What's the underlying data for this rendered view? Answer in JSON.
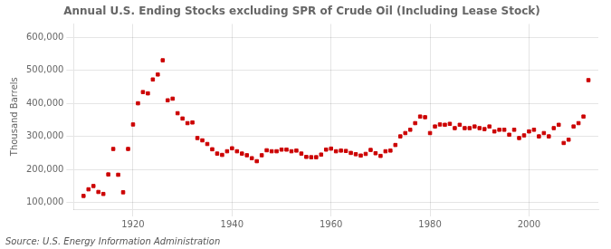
{
  "chart_data": {
    "type": "scatter",
    "title": "Annual U.S. Ending Stocks excluding SPR of Crude Oil (Including Lease Stock)",
    "y_label": "Thousand Barrels",
    "annotations": [
      "Source: U.S. Energy Information Administration"
    ],
    "color": "#cc0000",
    "marker": "square",
    "grid": true,
    "xlim": [
      1908,
      2014
    ],
    "ylim": [
      80000,
      640000
    ],
    "xticks": [
      1920,
      1940,
      1960,
      1980,
      2000
    ],
    "yticks": [
      {
        "value": 100000,
        "label": "100,000"
      },
      {
        "value": 200000,
        "label": "200,000"
      },
      {
        "value": 300000,
        "label": "300,000"
      },
      {
        "value": 400000,
        "label": "400,000"
      },
      {
        "value": 500000,
        "label": "500,000"
      },
      {
        "value": 600000,
        "label": "600,000"
      }
    ],
    "x": [
      1910,
      1911,
      1912,
      1913,
      1914,
      1915,
      1916,
      1917,
      1918,
      1919,
      1920,
      1921,
      1922,
      1923,
      1924,
      1925,
      1926,
      1927,
      1928,
      1929,
      1930,
      1931,
      1932,
      1933,
      1934,
      1935,
      1936,
      1937,
      1938,
      1939,
      1940,
      1941,
      1942,
      1943,
      1944,
      1945,
      1946,
      1947,
      1948,
      1949,
      1950,
      1951,
      1952,
      1953,
      1954,
      1955,
      1956,
      1957,
      1958,
      1959,
      1960,
      1961,
      1962,
      1963,
      1964,
      1965,
      1966,
      1967,
      1968,
      1969,
      1970,
      1971,
      1972,
      1973,
      1974,
      1975,
      1976,
      1977,
      1978,
      1979,
      1980,
      1981,
      1982,
      1983,
      1984,
      1985,
      1986,
      1987,
      1988,
      1989,
      1990,
      1991,
      1992,
      1993,
      1994,
      1995,
      1996,
      1997,
      1998,
      1999,
      2000,
      2001,
      2002,
      2003,
      2004,
      2005,
      2006,
      2007,
      2008,
      2009,
      2010,
      2011,
      2012
    ],
    "values": [
      120000,
      140000,
      150000,
      132000,
      126000,
      185000,
      262000,
      184000,
      131000,
      262000,
      336000,
      400000,
      434000,
      430000,
      472000,
      487000,
      530000,
      409000,
      414000,
      370000,
      354000,
      340000,
      342000,
      295000,
      288000,
      277000,
      261000,
      248000,
      244000,
      255000,
      264000,
      255000,
      248000,
      243000,
      234000,
      225000,
      243000,
      258000,
      255000,
      255000,
      260000,
      260000,
      255000,
      257000,
      248000,
      238000,
      237000,
      237000,
      245000,
      260000,
      263000,
      255000,
      257000,
      256000,
      250000,
      246000,
      242000,
      247000,
      259000,
      249000,
      241000,
      255000,
      257000,
      274000,
      300000,
      310000,
      320000,
      340000,
      360000,
      358000,
      310000,
      330000,
      336000,
      335000,
      338000,
      325000,
      335000,
      325000,
      325000,
      330000,
      325000,
      322000,
      330000,
      315000,
      320000,
      320000,
      305000,
      320000,
      295000,
      303000,
      315000,
      320000,
      300000,
      310000,
      300000,
      325000,
      335000,
      280000,
      290000,
      330000,
      340000,
      360000,
      470000
    ]
  }
}
